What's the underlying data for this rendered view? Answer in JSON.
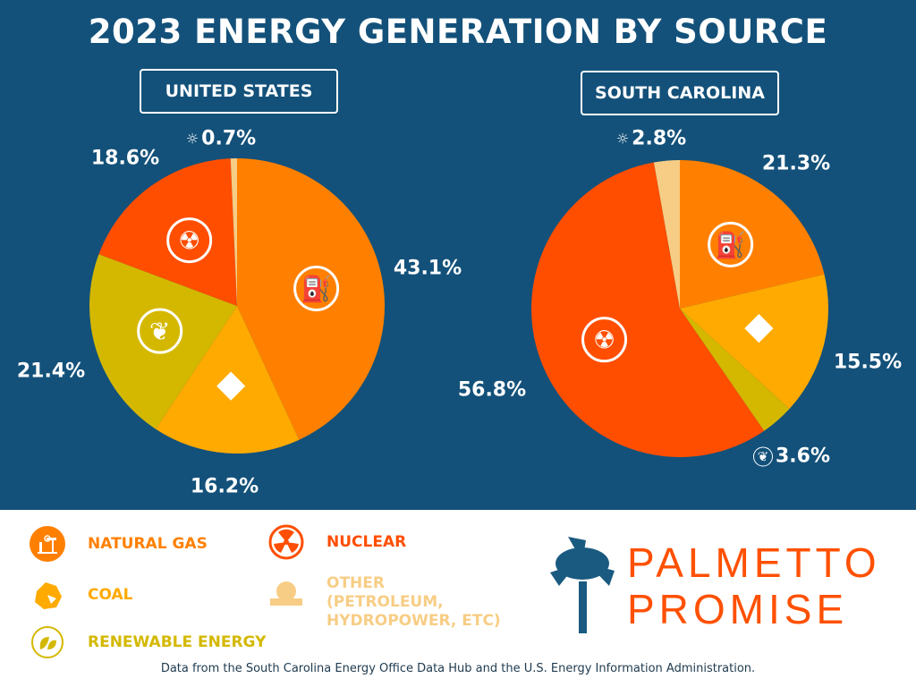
{
  "title": "2023 ENERGY GENERATION BY SOURCE",
  "colors": {
    "background": "#13517A",
    "natural_gas": "#FF8000",
    "coal": "#FFAA00",
    "renewable": "#D4B800",
    "nuclear": "#FF4E00",
    "other": "#F7CD85"
  },
  "chart_data": [
    {
      "type": "pie",
      "title": "UNITED STATES",
      "categories": [
        "Natural Gas",
        "Coal",
        "Renewable Energy",
        "Nuclear",
        "Other"
      ],
      "values": [
        43.1,
        16.2,
        21.4,
        18.6,
        0.7
      ],
      "labels": [
        "43.1%",
        "16.2%",
        "21.4%",
        "18.6%",
        "0.7%"
      ],
      "start": "top",
      "direction": "clockwise"
    },
    {
      "type": "pie",
      "title": "SOUTH CAROLINA",
      "categories": [
        "Natural Gas",
        "Coal",
        "Renewable Energy",
        "Nuclear",
        "Other"
      ],
      "values": [
        21.3,
        15.5,
        3.6,
        56.8,
        2.8
      ],
      "labels": [
        "21.3%",
        "15.5%",
        "3.6%",
        "56.8%",
        "2.8%"
      ],
      "start": "top",
      "direction": "clockwise"
    }
  ],
  "legend": [
    {
      "label": "NATURAL GAS",
      "icon": "oil-pump-icon",
      "color": "#FF8000"
    },
    {
      "label": "COAL",
      "icon": "coal-icon",
      "color": "#FFAA00"
    },
    {
      "label": "RENEWABLE ENERGY",
      "icon": "leaf-recycle-icon",
      "color": "#D4B800"
    },
    {
      "label": "NUCLEAR",
      "icon": "radiation-icon",
      "color": "#FF4E00"
    },
    {
      "label": "OTHER (PETROLEUM, HYDROPOWER, ETC)",
      "icon": "sun-water-icon",
      "color": "#F7CD85"
    }
  ],
  "logo": {
    "line1": "PALMETTO",
    "line2": "PROMISE"
  },
  "source": "Data from the South Carolina Energy Office Data Hub and the U.S. Energy Information Administration."
}
